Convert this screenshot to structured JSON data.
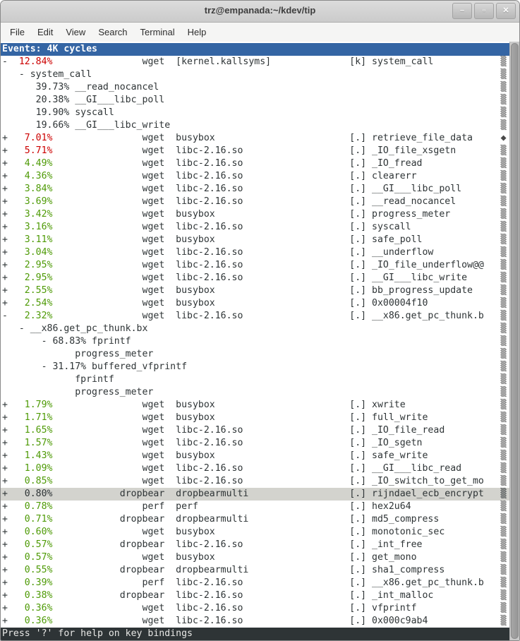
{
  "window": {
    "title": "trz@empanada:~/kdev/tip",
    "buttons": [
      {
        "name": "minimize",
        "glyph": "–"
      },
      {
        "name": "maximize",
        "glyph": "▫"
      },
      {
        "name": "close",
        "glyph": "✕"
      }
    ]
  },
  "menu": {
    "items": [
      "File",
      "Edit",
      "View",
      "Search",
      "Terminal",
      "Help"
    ]
  },
  "terminal": {
    "header": "Events: 4K cycles",
    "footer": "Press '?' for help on key bindings",
    "default_mark": "▒",
    "colors": {
      "header_bg": "#3465a4",
      "footer_bg": "#2e3436",
      "foreground": "#2e3436",
      "percent_high": "#cc0000",
      "percent_mid": "#4e9a06",
      "highlight_bg": "#d3d3ce"
    },
    "rows": [
      {
        "t": "e",
        "exp": "-",
        "pct": "12.84%",
        "c": "red",
        "cmd": "wget",
        "dso": "[kernel.kallsyms]",
        "mode": "[k]",
        "sym": "system_call"
      },
      {
        "t": "x",
        "text": "   - system_call"
      },
      {
        "t": "x",
        "text": "      39.73% __read_nocancel"
      },
      {
        "t": "x",
        "text": "      20.38% __GI___libc_poll"
      },
      {
        "t": "x",
        "text": "      19.90% syscall"
      },
      {
        "t": "x",
        "text": "      19.66% __GI___libc_write"
      },
      {
        "t": "e",
        "exp": "+",
        "pct": "7.01%",
        "c": "red",
        "cmd": "wget",
        "dso": "busybox",
        "mode": "[.]",
        "sym": "retrieve_file_data",
        "mark": "◆"
      },
      {
        "t": "e",
        "exp": "+",
        "pct": "5.71%",
        "c": "red",
        "cmd": "wget",
        "dso": "libc-2.16.so",
        "mode": "[.]",
        "sym": "_IO_file_xsgetn"
      },
      {
        "t": "e",
        "exp": "+",
        "pct": "4.49%",
        "c": "green",
        "cmd": "wget",
        "dso": "libc-2.16.so",
        "mode": "[.]",
        "sym": "_IO_fread"
      },
      {
        "t": "e",
        "exp": "+",
        "pct": "4.36%",
        "c": "green",
        "cmd": "wget",
        "dso": "libc-2.16.so",
        "mode": "[.]",
        "sym": "clearerr"
      },
      {
        "t": "e",
        "exp": "+",
        "pct": "3.84%",
        "c": "green",
        "cmd": "wget",
        "dso": "libc-2.16.so",
        "mode": "[.]",
        "sym": "__GI___libc_poll"
      },
      {
        "t": "e",
        "exp": "+",
        "pct": "3.69%",
        "c": "green",
        "cmd": "wget",
        "dso": "libc-2.16.so",
        "mode": "[.]",
        "sym": "__read_nocancel"
      },
      {
        "t": "e",
        "exp": "+",
        "pct": "3.42%",
        "c": "green",
        "cmd": "wget",
        "dso": "busybox",
        "mode": "[.]",
        "sym": "progress_meter"
      },
      {
        "t": "e",
        "exp": "+",
        "pct": "3.16%",
        "c": "green",
        "cmd": "wget",
        "dso": "libc-2.16.so",
        "mode": "[.]",
        "sym": "syscall"
      },
      {
        "t": "e",
        "exp": "+",
        "pct": "3.11%",
        "c": "green",
        "cmd": "wget",
        "dso": "busybox",
        "mode": "[.]",
        "sym": "safe_poll"
      },
      {
        "t": "e",
        "exp": "+",
        "pct": "3.04%",
        "c": "green",
        "cmd": "wget",
        "dso": "libc-2.16.so",
        "mode": "[.]",
        "sym": "__underflow"
      },
      {
        "t": "e",
        "exp": "+",
        "pct": "2.95%",
        "c": "green",
        "cmd": "wget",
        "dso": "libc-2.16.so",
        "mode": "[.]",
        "sym": "_IO_file_underflow@@"
      },
      {
        "t": "e",
        "exp": "+",
        "pct": "2.95%",
        "c": "green",
        "cmd": "wget",
        "dso": "libc-2.16.so",
        "mode": "[.]",
        "sym": "__GI___libc_write"
      },
      {
        "t": "e",
        "exp": "+",
        "pct": "2.55%",
        "c": "green",
        "cmd": "wget",
        "dso": "busybox",
        "mode": "[.]",
        "sym": "bb_progress_update"
      },
      {
        "t": "e",
        "exp": "+",
        "pct": "2.54%",
        "c": "green",
        "cmd": "wget",
        "dso": "busybox",
        "mode": "[.]",
        "sym": "0x00004f10"
      },
      {
        "t": "e",
        "exp": "-",
        "pct": "2.32%",
        "c": "green",
        "cmd": "wget",
        "dso": "libc-2.16.so",
        "mode": "[.]",
        "sym": "__x86.get_pc_thunk.b"
      },
      {
        "t": "x",
        "text": "   - __x86.get_pc_thunk.bx"
      },
      {
        "t": "x",
        "text": "       - 68.83% fprintf"
      },
      {
        "t": "x",
        "text": "             progress_meter"
      },
      {
        "t": "x",
        "text": "       - 31.17% buffered_vfprintf"
      },
      {
        "t": "x",
        "text": "             fprintf"
      },
      {
        "t": "x",
        "text": "             progress_meter"
      },
      {
        "t": "e",
        "exp": "+",
        "pct": "1.79%",
        "c": "green",
        "cmd": "wget",
        "dso": "busybox",
        "mode": "[.]",
        "sym": "xwrite"
      },
      {
        "t": "e",
        "exp": "+",
        "pct": "1.71%",
        "c": "green",
        "cmd": "wget",
        "dso": "busybox",
        "mode": "[.]",
        "sym": "full_write"
      },
      {
        "t": "e",
        "exp": "+",
        "pct": "1.65%",
        "c": "green",
        "cmd": "wget",
        "dso": "libc-2.16.so",
        "mode": "[.]",
        "sym": "_IO_file_read"
      },
      {
        "t": "e",
        "exp": "+",
        "pct": "1.57%",
        "c": "green",
        "cmd": "wget",
        "dso": "libc-2.16.so",
        "mode": "[.]",
        "sym": "_IO_sgetn"
      },
      {
        "t": "e",
        "exp": "+",
        "pct": "1.43%",
        "c": "green",
        "cmd": "wget",
        "dso": "busybox",
        "mode": "[.]",
        "sym": "safe_write"
      },
      {
        "t": "e",
        "exp": "+",
        "pct": "1.09%",
        "c": "green",
        "cmd": "wget",
        "dso": "libc-2.16.so",
        "mode": "[.]",
        "sym": "__GI___libc_read"
      },
      {
        "t": "e",
        "exp": "+",
        "pct": "0.85%",
        "c": "green",
        "cmd": "wget",
        "dso": "libc-2.16.so",
        "mode": "[.]",
        "sym": "_IO_switch_to_get_mo"
      },
      {
        "t": "e",
        "exp": "+",
        "pct": "0.80%",
        "c": "plain",
        "cmd": "dropbear",
        "dso": "dropbearmulti",
        "mode": "[.]",
        "sym": "rijndael_ecb_encrypt",
        "hl": true
      },
      {
        "t": "e",
        "exp": "+",
        "pct": "0.78%",
        "c": "green",
        "cmd": "perf",
        "dso": "perf",
        "mode": "[.]",
        "sym": "hex2u64"
      },
      {
        "t": "e",
        "exp": "+",
        "pct": "0.71%",
        "c": "green",
        "cmd": "dropbear",
        "dso": "dropbearmulti",
        "mode": "[.]",
        "sym": "md5_compress"
      },
      {
        "t": "e",
        "exp": "+",
        "pct": "0.60%",
        "c": "green",
        "cmd": "wget",
        "dso": "busybox",
        "mode": "[.]",
        "sym": "monotonic_sec"
      },
      {
        "t": "e",
        "exp": "+",
        "pct": "0.57%",
        "c": "green",
        "cmd": "dropbear",
        "dso": "libc-2.16.so",
        "mode": "[.]",
        "sym": "_int_free"
      },
      {
        "t": "e",
        "exp": "+",
        "pct": "0.57%",
        "c": "green",
        "cmd": "wget",
        "dso": "busybox",
        "mode": "[.]",
        "sym": "get_mono"
      },
      {
        "t": "e",
        "exp": "+",
        "pct": "0.55%",
        "c": "green",
        "cmd": "dropbear",
        "dso": "dropbearmulti",
        "mode": "[.]",
        "sym": "sha1_compress"
      },
      {
        "t": "e",
        "exp": "+",
        "pct": "0.39%",
        "c": "green",
        "cmd": "perf",
        "dso": "libc-2.16.so",
        "mode": "[.]",
        "sym": "__x86.get_pc_thunk.b"
      },
      {
        "t": "e",
        "exp": "+",
        "pct": "0.38%",
        "c": "green",
        "cmd": "dropbear",
        "dso": "libc-2.16.so",
        "mode": "[.]",
        "sym": "_int_malloc"
      },
      {
        "t": "e",
        "exp": "+",
        "pct": "0.36%",
        "c": "green",
        "cmd": "wget",
        "dso": "libc-2.16.so",
        "mode": "[.]",
        "sym": "vfprintf"
      },
      {
        "t": "e",
        "exp": "+",
        "pct": "0.36%",
        "c": "green",
        "cmd": "wget",
        "dso": "libc-2.16.so",
        "mode": "[.]",
        "sym": "0x000c9ab4"
      }
    ]
  }
}
